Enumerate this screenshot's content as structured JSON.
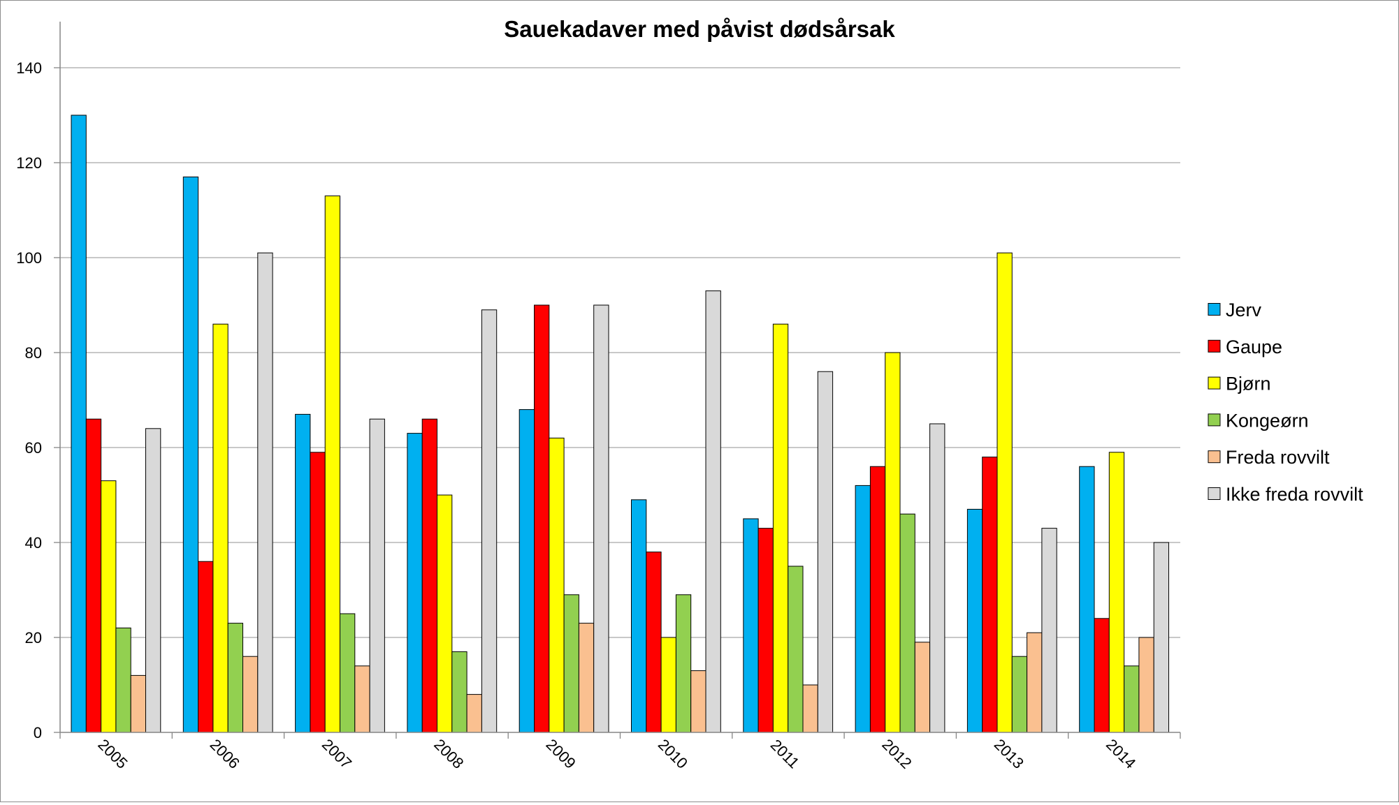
{
  "chart_data": {
    "type": "bar",
    "title": "Sauekadaver med påvist dødsårsak",
    "xlabel": "",
    "ylabel": "",
    "ylim": [
      0,
      150
    ],
    "yticks": [
      0,
      20,
      40,
      60,
      80,
      100,
      120,
      140
    ],
    "grid": true,
    "legend_position": "right",
    "categories": [
      "2005",
      "2006",
      "2007",
      "2008",
      "2009",
      "2010",
      "2011",
      "2012",
      "2013",
      "2014"
    ],
    "series": [
      {
        "name": "Jerv",
        "color": "#00B0F0",
        "values": [
          130,
          117,
          67,
          63,
          68,
          49,
          45,
          52,
          47,
          56
        ]
      },
      {
        "name": "Gaupe",
        "color": "#FF0000",
        "values": [
          66,
          36,
          59,
          66,
          90,
          38,
          43,
          56,
          58,
          24
        ]
      },
      {
        "name": "Bjørn",
        "color": "#FFFF00",
        "values": [
          53,
          86,
          113,
          50,
          62,
          20,
          86,
          80,
          101,
          59
        ]
      },
      {
        "name": "Kongeørn",
        "color": "#92D050",
        "values": [
          22,
          23,
          25,
          17,
          29,
          29,
          35,
          46,
          16,
          14
        ]
      },
      {
        "name": "Freda rovvilt",
        "color": "#FAC090",
        "values": [
          12,
          16,
          14,
          8,
          23,
          13,
          10,
          19,
          21,
          20
        ]
      },
      {
        "name": "Ikke freda rovvilt",
        "color": "#D9D9D9",
        "values": [
          64,
          101,
          66,
          89,
          90,
          93,
          76,
          65,
          43,
          40
        ]
      }
    ]
  }
}
